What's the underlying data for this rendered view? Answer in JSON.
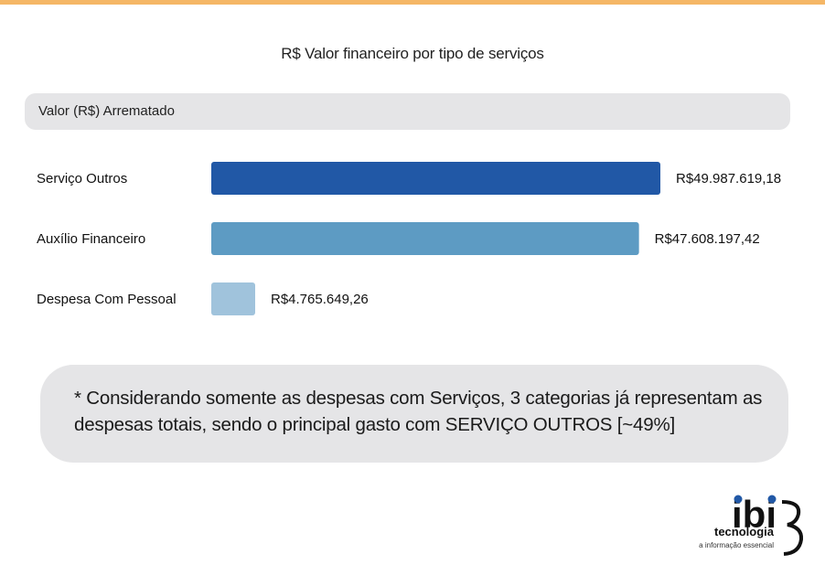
{
  "header": {
    "accent_color": "#f5b766"
  },
  "title": "R$ Valor financeiro por tipo de serviços",
  "section": {
    "label": "Valor (R$) Arrematado"
  },
  "chart_data": {
    "type": "bar",
    "orientation": "horizontal",
    "categories": [
      "Serviço Outros",
      "Auxílio Financeiro",
      "Despesa Com Pessoal"
    ],
    "values": [
      49987619.18,
      47608197.42,
      4765649.26
    ],
    "value_labels": [
      "R$49.987.619,18",
      "R$47.608.197,42",
      "R$4.765.649,26"
    ],
    "colors": [
      "#2158a6",
      "#5d9bc3",
      "#a0c3dc"
    ],
    "title": "R$ Valor financeiro por tipo de serviços",
    "xlabel": "",
    "ylabel": "",
    "grid": false,
    "legend": "none"
  },
  "note": {
    "text": "* Considerando somente as despesas com Serviços, 3 categorias já representam as despesas totais, sendo o principal gasto com SERVIÇO OUTROS [~49%]"
  },
  "logo": {
    "mark": "ibi",
    "name": "tecnologia",
    "tagline": "a informação essencial"
  }
}
